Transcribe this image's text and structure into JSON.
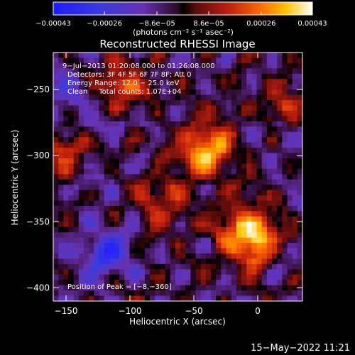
{
  "chart_data": {
    "type": "heatmap",
    "title": "Reconstructed RHESSI Image",
    "xlabel": "Heliocentric X (arcsec)",
    "ylabel": "Heliocentric Y (arcsec)",
    "xlim": [
      -160,
      35
    ],
    "ylim": [
      -410,
      -222
    ],
    "x_ticks": [
      -150,
      -100,
      -50,
      0
    ],
    "x_tick_labels": [
      "−150",
      "−100",
      "−50",
      "0"
    ],
    "y_ticks": [
      -250,
      -300,
      -350,
      -400
    ],
    "y_tick_labels": [
      "−250",
      "−300",
      "−350",
      "−400"
    ],
    "pixel_grid": {
      "nx": 49,
      "ny": 47
    },
    "colorbar": {
      "min": -0.00043,
      "max": 0.00043,
      "ticks": [
        -0.00043,
        -0.00026,
        -8.6e-05,
        8.6e-05,
        0.00026,
        0.00043
      ],
      "tick_labels": [
        "−0.00043",
        "−0.00026",
        "−8.6e−05",
        "8.6e−05",
        "0.00026",
        "0.00043"
      ],
      "units_label": "(photons cm⁻² s⁻¹ asec⁻²)"
    },
    "sources": [
      {
        "x": -8,
        "y": -360,
        "strength": 1.0,
        "sigma": 16
      },
      {
        "x": -40,
        "y": -295,
        "strength": 0.85,
        "sigma": 15
      },
      {
        "x": -75,
        "y": -335,
        "strength": 0.45,
        "sigma": 14
      },
      {
        "x": -105,
        "y": -245,
        "strength": 0.55,
        "sigma": 12
      },
      {
        "x": -150,
        "y": -300,
        "strength": 0.45,
        "sigma": 13
      },
      {
        "x": 20,
        "y": -255,
        "strength": 0.35,
        "sigma": 12
      },
      {
        "x": -120,
        "y": -375,
        "strength": -0.6,
        "sigma": 14
      },
      {
        "x": -155,
        "y": -260,
        "strength": -0.3,
        "sigma": 12
      }
    ],
    "annotations": [
      "9−Jul−2013 01:20:08.000 to 01:26:08.000",
      "Detectors: 3F 4F 5F 6F 7F 8F; Att 0",
      "Energy Range: 12.0 − 25.0 keV",
      "Clean     Total counts: 1.07E+04",
      "Position of Peak = [−8,−360]"
    ],
    "date_stamp": "15−May−2022 11:21"
  }
}
